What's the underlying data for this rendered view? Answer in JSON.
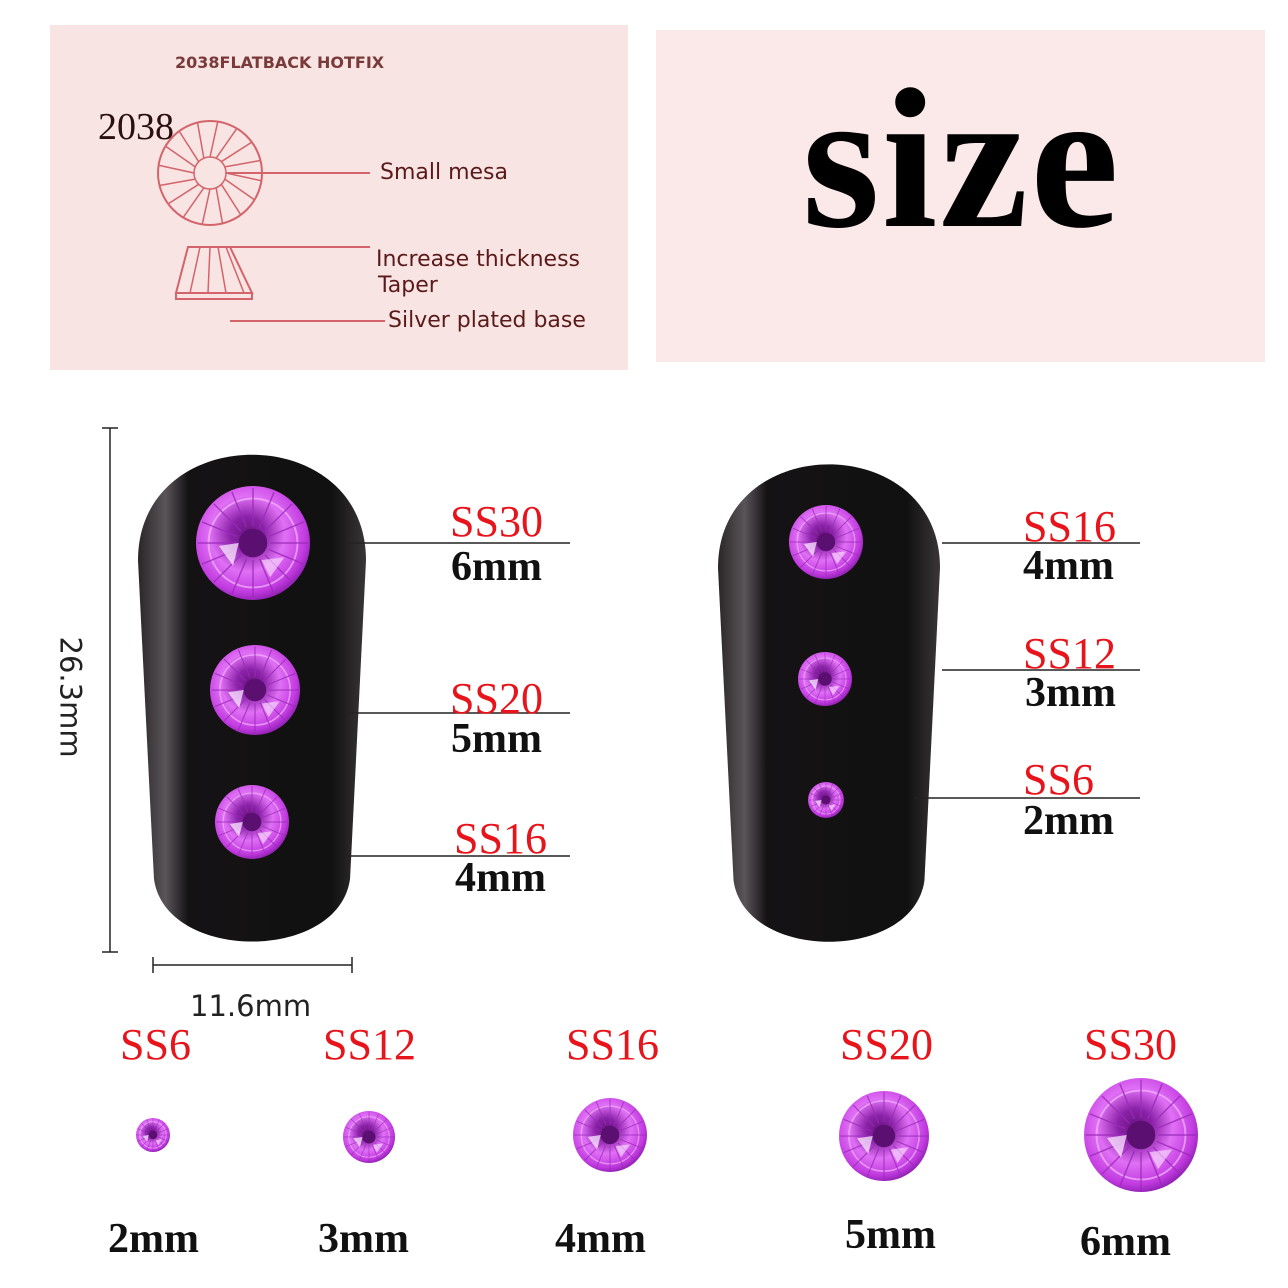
{
  "diagram_panel": {
    "heading": "2038FLATBACK HOTFIX",
    "model": "2038",
    "callouts": [
      "Small mesa",
      "Increase thickness",
      "Taper",
      "Silver plated base"
    ],
    "background": "#f9e4e4",
    "line_color": "#d2646a"
  },
  "title_panel": {
    "title": "size",
    "background": "#fbe8e8"
  },
  "dimensions": {
    "height": "26.3mm",
    "width": "11.6mm"
  },
  "left_nail": [
    {
      "code": "SS30",
      "size": "6mm"
    },
    {
      "code": "SS20",
      "size": "5mm"
    },
    {
      "code": "SS16",
      "size": "4mm"
    }
  ],
  "right_nail": [
    {
      "code": "SS16",
      "size": "4mm"
    },
    {
      "code": "SS12",
      "size": "3mm"
    },
    {
      "code": "SS6",
      "size": "2mm"
    }
  ],
  "size_row": [
    {
      "code": "SS6",
      "size": "2mm"
    },
    {
      "code": "SS12",
      "size": "3mm"
    },
    {
      "code": "SS16",
      "size": "4mm"
    },
    {
      "code": "SS20",
      "size": "5mm"
    },
    {
      "code": "SS30",
      "size": "6mm"
    }
  ],
  "colors": {
    "code_label": "#e8141b",
    "gem": "#c23be0",
    "nail": "#151214"
  }
}
